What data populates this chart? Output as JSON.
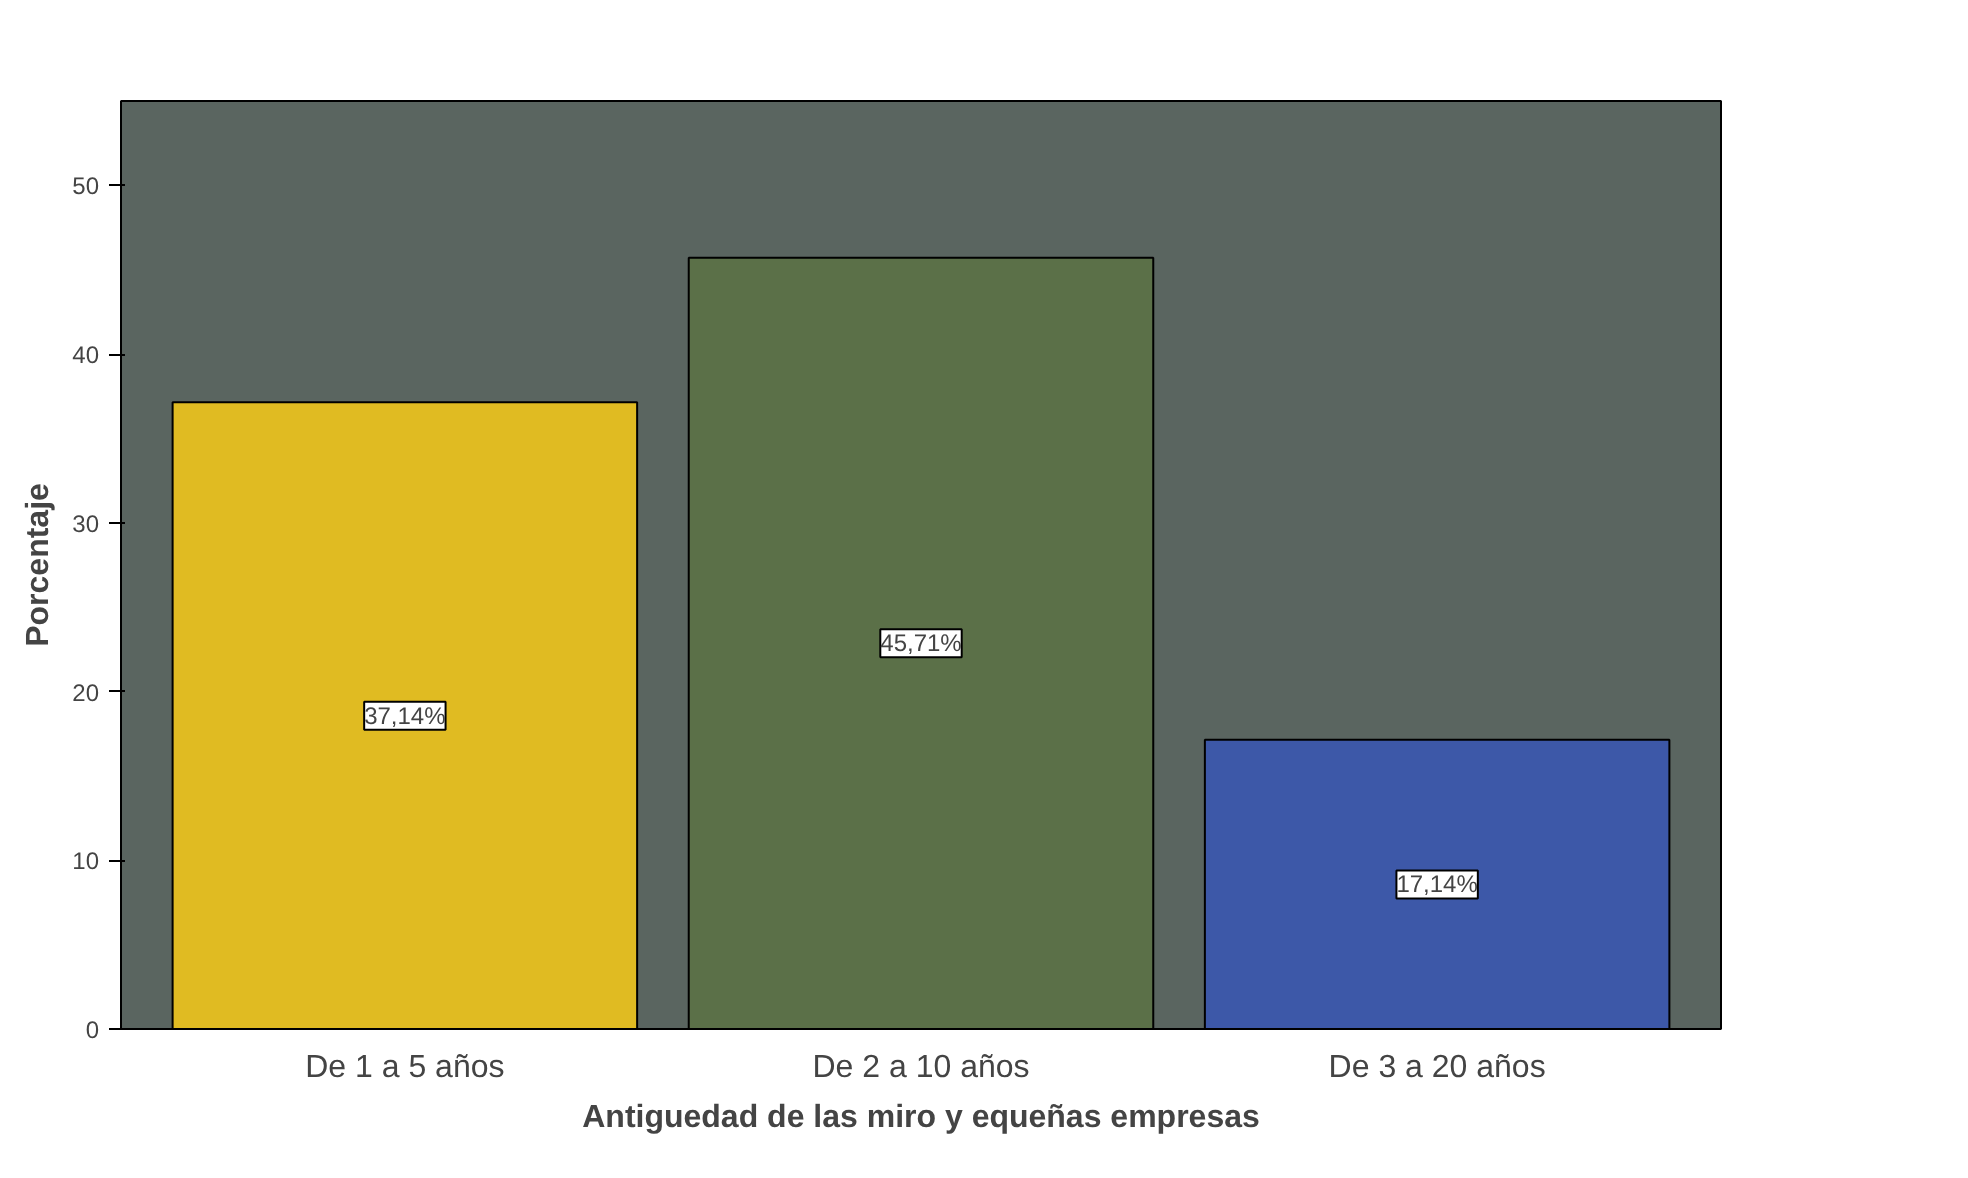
{
  "chart_data": {
    "type": "bar",
    "xlabel": "Antiguedad de las miro y equeñas empresas",
    "ylabel": "Porcentaje",
    "categories": [
      "De 1 a 5 años",
      "De 2 a 10 años",
      "De 3 a 20 años"
    ],
    "values": [
      37.14,
      45.71,
      17.14
    ],
    "colors": [
      "#e0bb22",
      "#5b7048",
      "#3d58a8"
    ],
    "value_labels": [
      "37,14%",
      "45,71%",
      "17,14%"
    ],
    "ylim": [
      0,
      55
    ],
    "yticks": [
      0,
      10,
      20,
      30,
      40,
      50
    ],
    "grid": false
  }
}
